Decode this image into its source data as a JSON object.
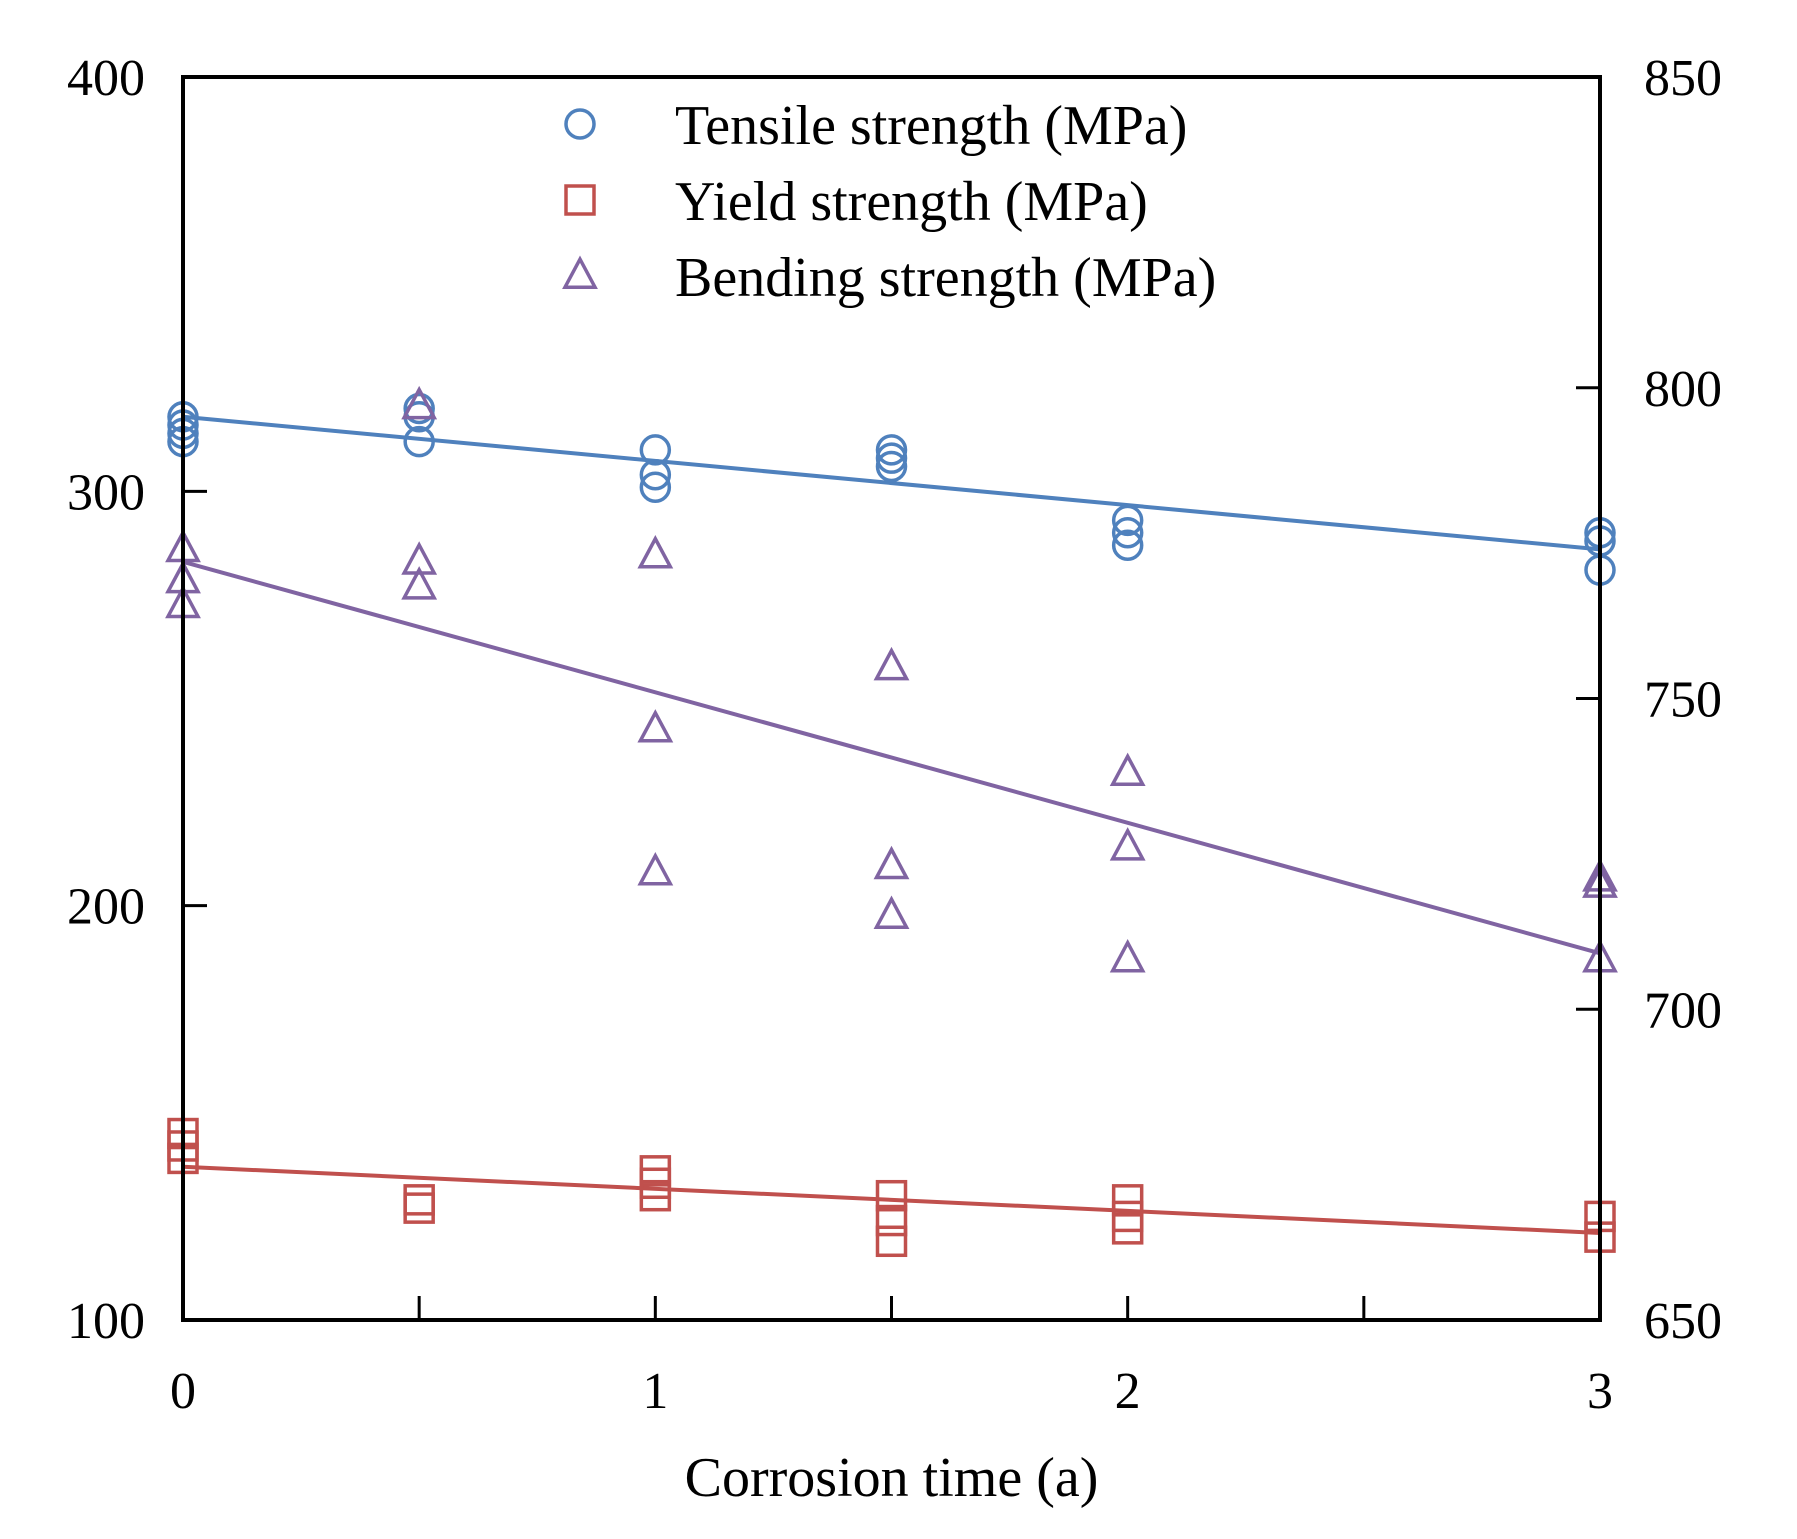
{
  "chart_data": {
    "type": "scatter",
    "title": "",
    "xlabel": "Corrosion time (a)",
    "ylabel_left": "",
    "ylabel_right": "",
    "xlim": [
      0,
      3
    ],
    "ylim_left": [
      100,
      400
    ],
    "ylim_right": [
      650,
      850
    ],
    "x_ticks": [
      0,
      1,
      2,
      3
    ],
    "x_minor_ticks": [
      0.5,
      1.5,
      2.5
    ],
    "y_ticks_left": [
      100,
      200,
      300,
      400
    ],
    "y_ticks_right": [
      650,
      700,
      750,
      800,
      850
    ],
    "grid": false,
    "legend_position": "top-center",
    "series": [
      {
        "name": "Tensile strength (MPa)",
        "marker": "circle",
        "color": "#4f81bd",
        "axis": "left",
        "points": [
          [
            0,
            318
          ],
          [
            0,
            316
          ],
          [
            0,
            314
          ],
          [
            0,
            312
          ],
          [
            0.5,
            320
          ],
          [
            0.5,
            318
          ],
          [
            0.5,
            312
          ],
          [
            1,
            310
          ],
          [
            1,
            304
          ],
          [
            1,
            301
          ],
          [
            1.5,
            310
          ],
          [
            1.5,
            308
          ],
          [
            1.5,
            306
          ],
          [
            2,
            293
          ],
          [
            2,
            290
          ],
          [
            2,
            287
          ],
          [
            3,
            290
          ],
          [
            3,
            288
          ],
          [
            3,
            281
          ]
        ],
        "fit": [
          [
            0,
            318
          ],
          [
            3,
            286
          ]
        ]
      },
      {
        "name": "Yield strength (MPa)",
        "marker": "square",
        "color": "#c0504d",
        "axis": "left",
        "points": [
          [
            0,
            145
          ],
          [
            0,
            142
          ],
          [
            0,
            139
          ],
          [
            0.5,
            129
          ],
          [
            0.5,
            127
          ],
          [
            1,
            136
          ],
          [
            1,
            133
          ],
          [
            1,
            130
          ],
          [
            1.5,
            130
          ],
          [
            1.5,
            124
          ],
          [
            1.5,
            119
          ],
          [
            2,
            129
          ],
          [
            2,
            125
          ],
          [
            2,
            122
          ],
          [
            3,
            125
          ],
          [
            3,
            120
          ]
        ],
        "fit": [
          [
            0,
            137
          ],
          [
            3,
            121
          ]
        ]
      },
      {
        "name": "Bending strength (MPa)",
        "marker": "triangle",
        "color": "#8064a2",
        "axis": "right",
        "points": [
          [
            0,
            774
          ],
          [
            0,
            769
          ],
          [
            0,
            765
          ],
          [
            0.5,
            797
          ],
          [
            0.5,
            772
          ],
          [
            0.5,
            768
          ],
          [
            1,
            773
          ],
          [
            1,
            745
          ],
          [
            1,
            722
          ],
          [
            1.5,
            755
          ],
          [
            1.5,
            723
          ],
          [
            1.5,
            715
          ],
          [
            2,
            738
          ],
          [
            2,
            726
          ],
          [
            2,
            708
          ],
          [
            3,
            721
          ],
          [
            3,
            720
          ],
          [
            3,
            708
          ]
        ],
        "fit": [
          [
            0,
            772
          ],
          [
            3,
            709
          ]
        ]
      }
    ]
  }
}
